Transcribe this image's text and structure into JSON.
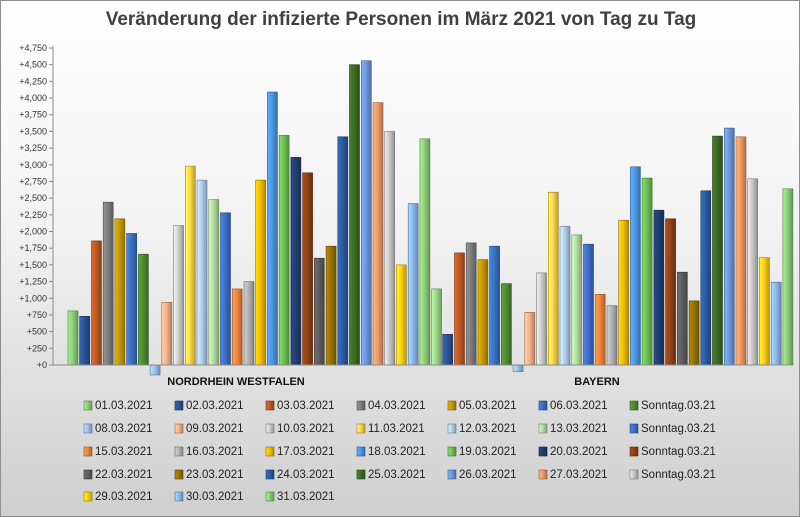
{
  "chart_data": {
    "type": "bar",
    "title": "Veränderung der infizierte Personen im März 2021 von Tag zu Tag",
    "xlabel": "",
    "ylabel": "",
    "categories": [
      "NORDRHEIN WESTFALEN",
      "BAYERN"
    ],
    "ylim": [
      -200,
      4750
    ],
    "yticks": [
      0,
      250,
      500,
      750,
      1000,
      1250,
      1500,
      1750,
      2000,
      2250,
      2500,
      2750,
      3000,
      3250,
      3500,
      3750,
      4000,
      4250,
      4500,
      4750
    ],
    "ytick_labels": [
      "+0",
      "+250",
      "+500",
      "+750",
      "+1,000",
      "+1,250",
      "+1,500",
      "+1,750",
      "+2,000",
      "+2,250",
      "+2,500",
      "+2,750",
      "+3,000",
      "+3,250",
      "+3,500",
      "+3,750",
      "+4,000",
      "+4,250",
      "+4,500",
      "+4,750"
    ],
    "grid": false,
    "legend_position": "bottom",
    "series": [
      {
        "name": "01.03.2021",
        "color": "#8fd07a",
        "values": [
          810,
          0
        ]
      },
      {
        "name": "02.03.2021",
        "color": "#2e5496",
        "values": [
          730,
          460
        ]
      },
      {
        "name": "03.03.2021",
        "color": "#c05a25",
        "values": [
          1860,
          1680
        ]
      },
      {
        "name": "04.03.2021",
        "color": "#7f7f7f",
        "values": [
          2440,
          1830
        ]
      },
      {
        "name": "05.03.2021",
        "color": "#c49a00",
        "values": [
          2190,
          1580
        ]
      },
      {
        "name": "06.03.2021",
        "color": "#3a73c4",
        "values": [
          1970,
          1780
        ]
      },
      {
        "name": "Sonntag.03.21",
        "color": "#4e8e33",
        "values": [
          1660,
          1220
        ]
      },
      {
        "name": "08.03.2021",
        "color": "#9ec2ef",
        "values": [
          -150,
          -100
        ]
      },
      {
        "name": "09.03.2021",
        "color": "#f6b38d",
        "values": [
          940,
          790
        ]
      },
      {
        "name": "10.03.2021",
        "color": "#cfcfcf",
        "values": [
          2090,
          1380
        ]
      },
      {
        "name": "11.03.2021",
        "color": "#ffd94a",
        "values": [
          2980,
          2590
        ]
      },
      {
        "name": "12.03.2021",
        "color": "#b4d0f1",
        "values": [
          2770,
          2080
        ]
      },
      {
        "name": "13.03.2021",
        "color": "#b5e0a2",
        "values": [
          2480,
          1950
        ]
      },
      {
        "name": "Sonntag.03.21",
        "color": "#3f6fc9",
        "values": [
          2280,
          1810
        ]
      },
      {
        "name": "15.03.2021",
        "color": "#f0883f",
        "values": [
          1140,
          1060
        ]
      },
      {
        "name": "16.03.2021",
        "color": "#b3b3b3",
        "values": [
          1250,
          890
        ]
      },
      {
        "name": "17.03.2021",
        "color": "#f5bd00",
        "values": [
          2770,
          2170
        ]
      },
      {
        "name": "18.03.2021",
        "color": "#4e97e6",
        "values": [
          4090,
          2970
        ]
      },
      {
        "name": "19.03.2021",
        "color": "#6ec254",
        "values": [
          3440,
          2800
        ]
      },
      {
        "name": "20.03.2021",
        "color": "#233f73",
        "values": [
          3110,
          2320
        ]
      },
      {
        "name": "Sonntag.03.21",
        "color": "#944316",
        "values": [
          2880,
          2190
        ]
      },
      {
        "name": "22.03.2021",
        "color": "#5f5f5f",
        "values": [
          1600,
          1390
        ]
      },
      {
        "name": "23.03.2021",
        "color": "#9a7600",
        "values": [
          1780,
          960
        ]
      },
      {
        "name": "24.03.2021",
        "color": "#2c5ca5",
        "values": [
          3420,
          2610
        ]
      },
      {
        "name": "25.03.2021",
        "color": "#3b6e26",
        "values": [
          4500,
          3430
        ]
      },
      {
        "name": "26.03.2021",
        "color": "#6e99e0",
        "values": [
          4560,
          3550
        ]
      },
      {
        "name": "27.03.2021",
        "color": "#f39b6a",
        "values": [
          3930,
          3420
        ]
      },
      {
        "name": "Sonntag.03.21",
        "color": "#c9c9c9",
        "values": [
          3500,
          2790
        ]
      },
      {
        "name": "29.03.2021",
        "color": "#ffd218",
        "values": [
          1500,
          1610
        ]
      },
      {
        "name": "30.03.2021",
        "color": "#8dbbf0",
        "values": [
          2420,
          1240
        ]
      },
      {
        "name": "31.03.2021",
        "color": "#8fd07a",
        "values": [
          3390,
          2640
        ]
      },
      {
        "name": "",
        "color": "#9fd88d",
        "values": [
          1140,
          0
        ]
      }
    ]
  }
}
